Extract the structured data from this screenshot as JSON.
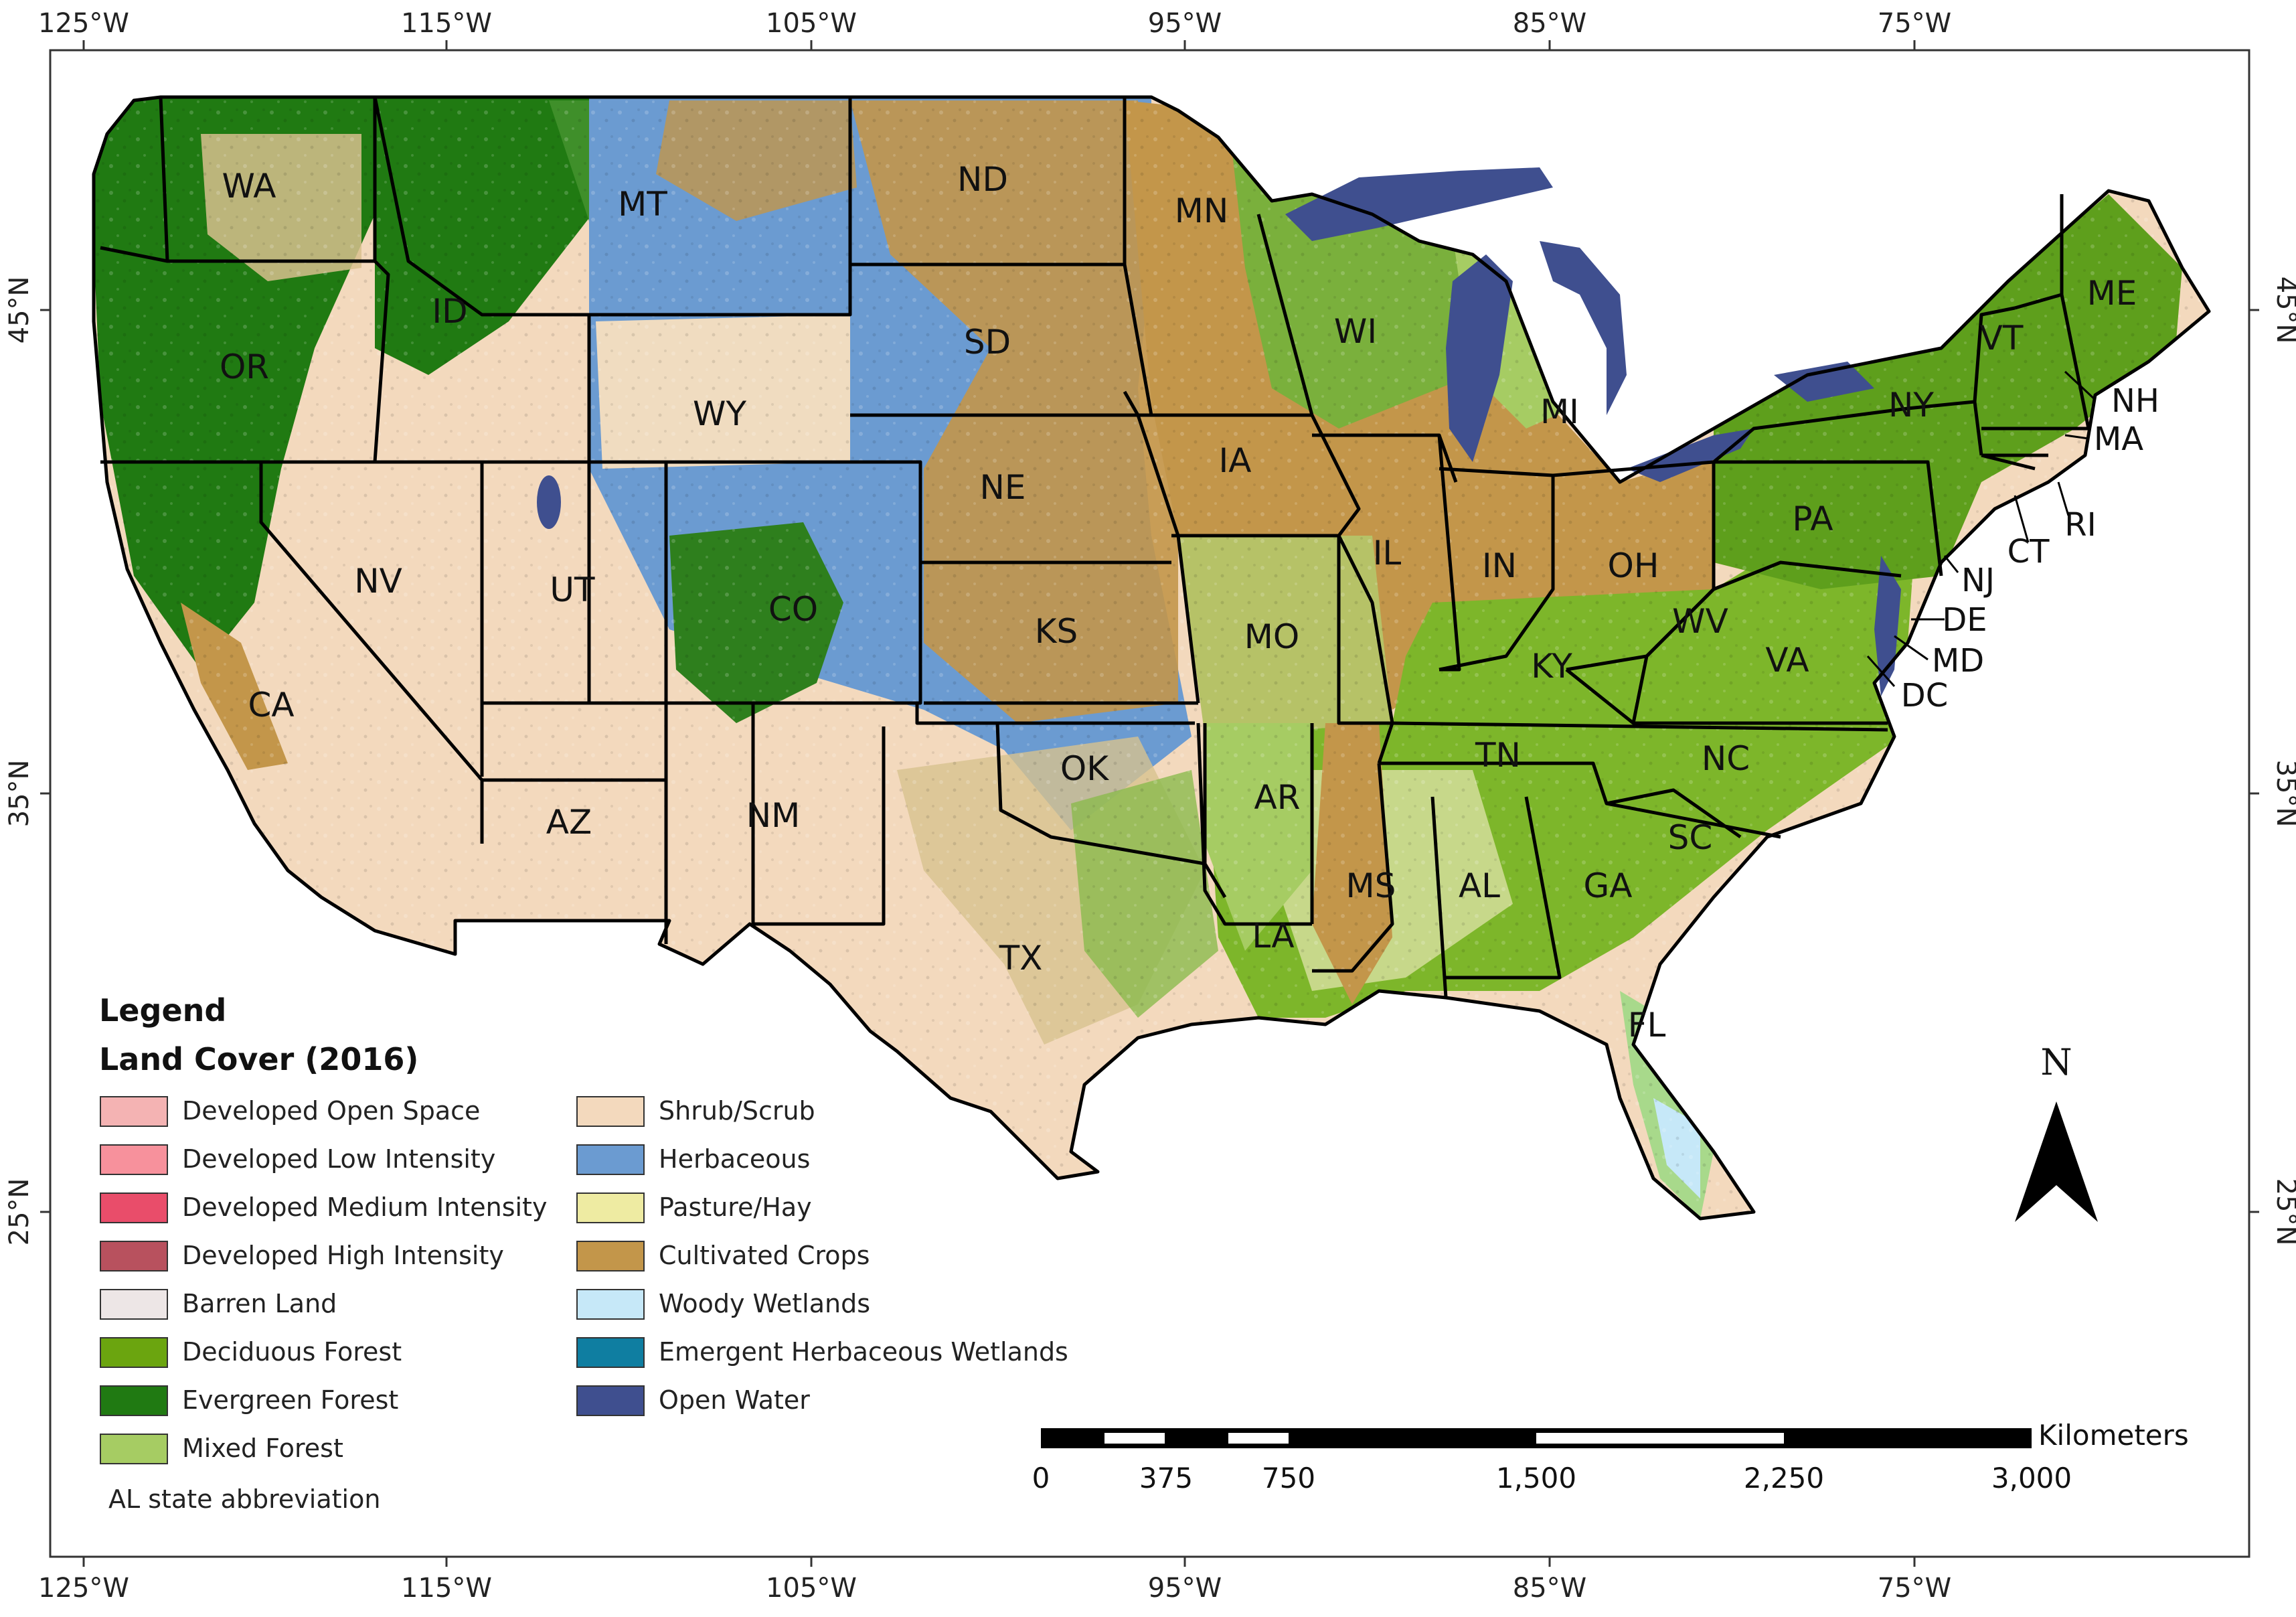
{
  "graticule": {
    "lon_top": [
      "125°W",
      "115°W",
      "105°W",
      "95°W",
      "85°W",
      "75°W"
    ],
    "lon_bottom": [
      "125°W",
      "115°W",
      "105°W",
      "95°W",
      "85°W",
      "75°W"
    ],
    "lat_left": [
      "45°N",
      "35°N",
      "25°N"
    ],
    "lat_right": [
      "45°N",
      "35°N",
      "25°N"
    ]
  },
  "states": {
    "WA": "WA",
    "OR": "OR",
    "CA": "CA",
    "ID": "ID",
    "NV": "NV",
    "MT": "MT",
    "WY": "WY",
    "UT": "UT",
    "AZ": "AZ",
    "CO": "CO",
    "NM": "NM",
    "ND": "ND",
    "SD": "SD",
    "NE": "NE",
    "KS": "KS",
    "OK": "OK",
    "TX": "TX",
    "MN": "MN",
    "IA": "IA",
    "MO": "MO",
    "AR": "AR",
    "LA": "LA",
    "WI": "WI",
    "IL": "IL",
    "MI": "MI",
    "IN": "IN",
    "OH": "OH",
    "KY": "KY",
    "TN": "TN",
    "MS": "MS",
    "AL": "AL",
    "GA": "GA",
    "FL": "FL",
    "SC": "SC",
    "NC": "NC",
    "VA": "VA",
    "WV": "WV",
    "PA": "PA",
    "NY": "NY",
    "VT": "VT",
    "NH": "NH",
    "ME": "ME",
    "MA": "MA",
    "RI": "RI",
    "CT": "CT",
    "NJ": "NJ",
    "DE": "DE",
    "MD": "MD",
    "DC": "DC"
  },
  "legend": {
    "title": "Legend",
    "subtitle": "Land Cover (2016)",
    "col1": [
      {
        "label": "Developed Open Space",
        "color": "#f4b3b3"
      },
      {
        "label": "Developed Low Intensity",
        "color": "#f7919c"
      },
      {
        "label": "Developed Medium Intensity",
        "color": "#e94d6a"
      },
      {
        "label": "Developed High Intensity",
        "color": "#b8515e"
      },
      {
        "label": "Barren Land",
        "color": "#ede6e6"
      },
      {
        "label": "Deciduous Forest",
        "color": "#6ba50f"
      },
      {
        "label": "Evergreen Forest",
        "color": "#207a12"
      },
      {
        "label": "Mixed Forest",
        "color": "#a6cc63"
      }
    ],
    "col2": [
      {
        "label": "Shrub/Scrub",
        "color": "#f3d9bd"
      },
      {
        "label": "Herbaceous",
        "color": "#6b9bd1"
      },
      {
        "label": "Pasture/Hay",
        "color": "#eeeba2"
      },
      {
        "label": "Cultivated Crops",
        "color": "#c3964a"
      },
      {
        "label": "Woody Wetlands",
        "color": "#c6e8f8"
      },
      {
        "label": "Emergent Herbaceous Wetlands",
        "color": "#0f7ea1"
      },
      {
        "label": "Open Water",
        "color": "#3f4f8f"
      }
    ],
    "abbrev_note": "AL state abbreviation"
  },
  "scale": {
    "unit": "Kilometers",
    "ticks": [
      "0",
      "375",
      "750",
      "1,500",
      "2,250",
      "3,000"
    ]
  },
  "north_label": "N",
  "colors": {
    "frame": "#333333",
    "state_border": "#000000",
    "water": "#3f4f8f"
  }
}
